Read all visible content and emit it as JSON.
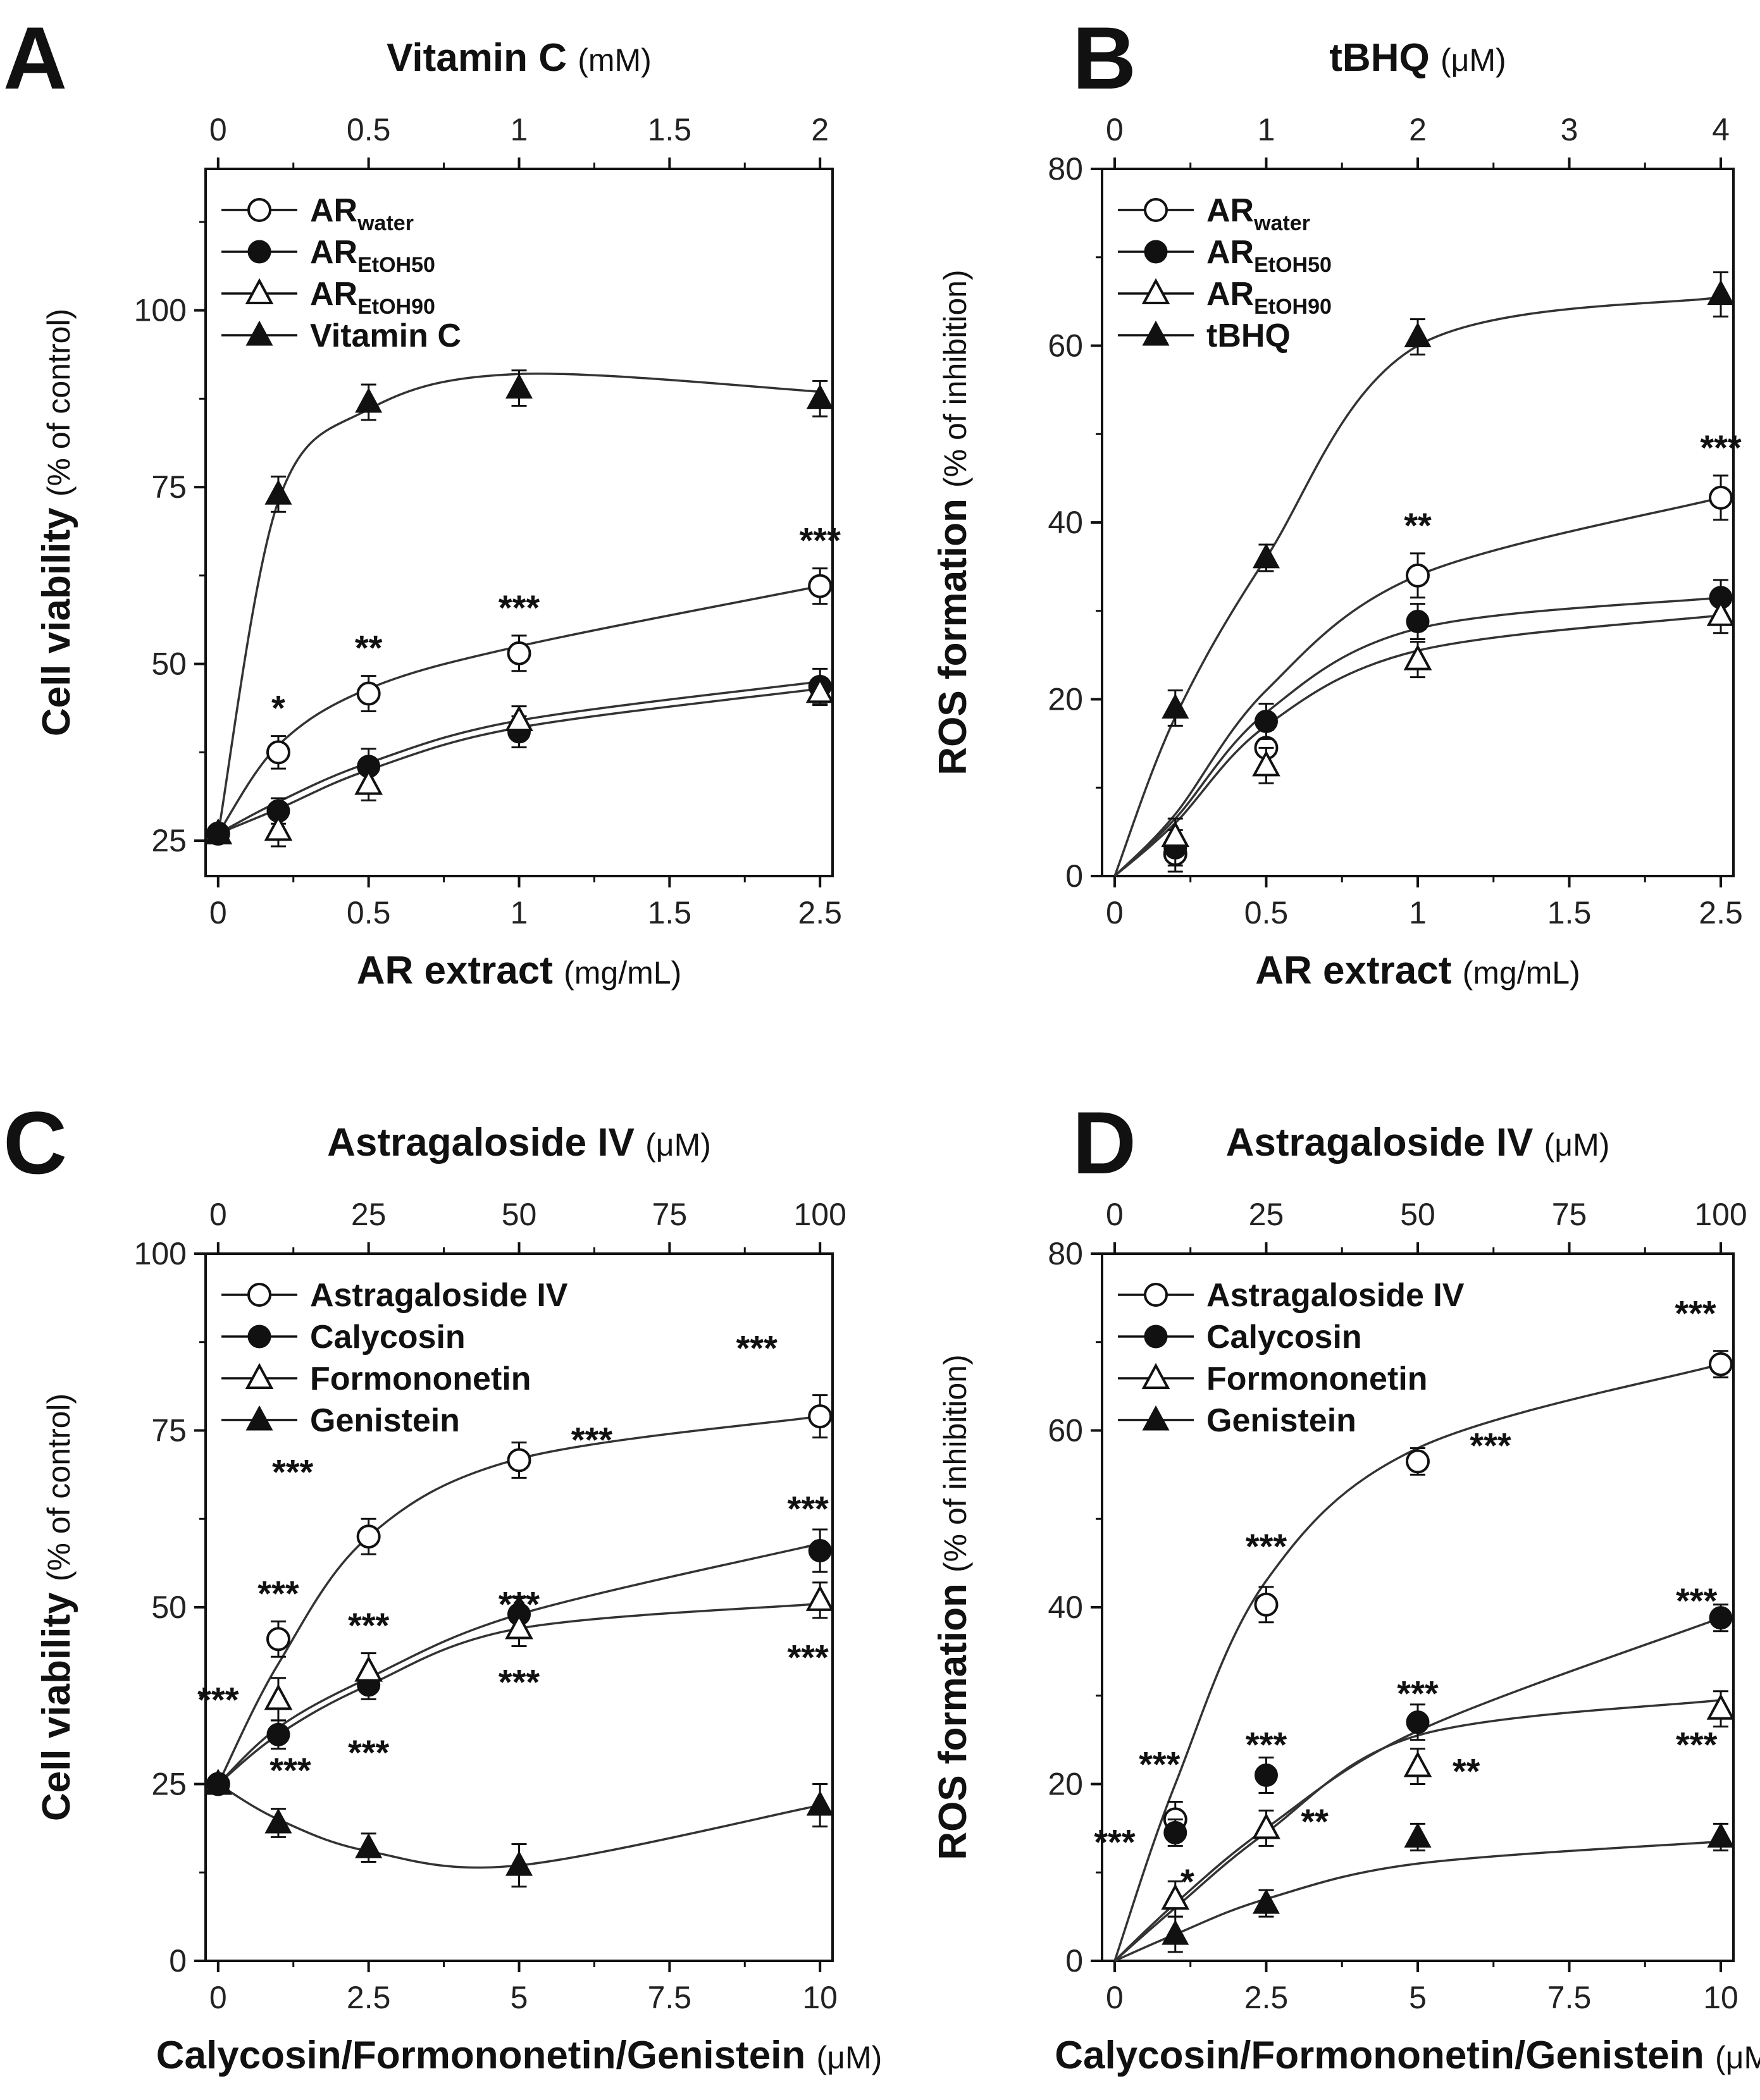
{
  "chart_data": [
    {
      "panel": "A",
      "type": "line",
      "title": "",
      "top_axis": {
        "label": "Vitamin C",
        "unit": "(mM)",
        "ticks": [
          "0",
          "0.5",
          "1",
          "1.5",
          "2"
        ]
      },
      "xlabel": "AR extract",
      "xunit": "(mg/mL)",
      "ylabel": "Cell viability",
      "yunit": "(% of control)",
      "x_ticks": [
        "0",
        "0.5",
        "1",
        "1.5",
        "2.5"
      ],
      "y_ticks": [
        "25",
        "50",
        "75",
        "100"
      ],
      "ylim": [
        20,
        120
      ],
      "categories": [
        "0",
        "0.2",
        "0.5",
        "1",
        "2.5"
      ],
      "legend": [
        "AR_water",
        "AR_EtOH50",
        "AR_EtOH90",
        "Vitamin C"
      ],
      "series": [
        {
          "name": "AR",
          "sub": "water",
          "marker": "open-circle",
          "values": [
            26,
            37.5,
            45.8,
            51.5,
            61
          ],
          "err": [
            1,
            2.3,
            2.5,
            2.5,
            2.5
          ],
          "fit": [
            26,
            38.5,
            46.5,
            52.5,
            61
          ],
          "stars": [
            {
              "x": 1,
              "text": "*",
              "dy": -25
            },
            {
              "x": 2,
              "text": "**",
              "dy": -25
            },
            {
              "x": 3,
              "text": "***",
              "dy": -25
            },
            {
              "x": 4,
              "text": "***",
              "dy": -25
            }
          ]
        },
        {
          "name": "AR",
          "sub": "EtOH50",
          "marker": "filled-circle",
          "values": [
            26,
            29.2,
            35.5,
            40.4,
            46.8
          ],
          "err": [
            1,
            1.8,
            2.5,
            2.2,
            2.5
          ],
          "fit": [
            26,
            30.5,
            36,
            42,
            47.5
          ],
          "stars": []
        },
        {
          "name": "AR",
          "sub": "EtOH90",
          "marker": "open-triangle",
          "values": [
            26,
            26.5,
            33,
            42,
            46
          ],
          "err": [
            1,
            2.3,
            2.3,
            2,
            1.8
          ],
          "fit": [
            26,
            29.5,
            35,
            41,
            46.5
          ],
          "stars": []
        },
        {
          "name": "Vitamin C",
          "sub": "",
          "marker": "filled-triangle",
          "values": [
            26,
            74,
            87,
            89,
            87.5
          ],
          "err": [
            1,
            2.5,
            2.5,
            2.5,
            2.5
          ],
          "fit": [
            26,
            73,
            86,
            91,
            88.5
          ],
          "stars": []
        }
      ]
    },
    {
      "panel": "B",
      "type": "line",
      "title": "",
      "top_axis": {
        "label": "tBHQ",
        "unit": "(μM)",
        "ticks": [
          "0",
          "1",
          "2",
          "3",
          "4"
        ]
      },
      "xlabel": "AR extract",
      "xunit": "(mg/mL)",
      "ylabel": "ROS formation",
      "yunit": "(% of inhibition)",
      "x_ticks": [
        "0",
        "0.5",
        "1",
        "1.5",
        "2.5"
      ],
      "y_ticks": [
        "0",
        "20",
        "40",
        "60",
        "80"
      ],
      "ylim": [
        0,
        80
      ],
      "categories": [
        "0",
        "0.2",
        "0.5",
        "1",
        "2.5"
      ],
      "legend": [
        "AR_water",
        "AR_EtOH50",
        "AR_EtOH90",
        "tBHQ"
      ],
      "series": [
        {
          "name": "AR",
          "sub": "water",
          "marker": "open-circle",
          "values": [
            null,
            2.5,
            14.5,
            34,
            42.8
          ],
          "err": [
            0,
            2,
            2,
            2.5,
            2.5
          ],
          "fit": [
            0,
            7,
            21,
            34,
            42.8
          ],
          "stars": [
            {
              "x": 3,
              "text": "**",
              "dy": -25
            },
            {
              "x": 4,
              "text": "***",
              "dy": -25
            }
          ]
        },
        {
          "name": "AR",
          "sub": "EtOH50",
          "marker": "filled-circle",
          "values": [
            null,
            3.2,
            17.5,
            28.8,
            31.5
          ],
          "err": [
            0,
            2,
            2,
            2,
            2
          ],
          "fit": [
            0,
            6.5,
            18.5,
            28,
            31.5
          ],
          "stars": []
        },
        {
          "name": "AR",
          "sub": "EtOH90",
          "marker": "open-triangle",
          "values": [
            null,
            4.5,
            12.5,
            24.5,
            29.5
          ],
          "err": [
            0,
            2,
            2,
            2,
            2
          ],
          "fit": [
            0,
            6,
            17,
            25.5,
            29.5
          ],
          "stars": []
        },
        {
          "name": "tBHQ",
          "sub": "",
          "marker": "filled-triangle",
          "values": [
            null,
            19,
            36,
            61,
            65.8
          ],
          "err": [
            0,
            2,
            1.5,
            2,
            2.5
          ],
          "fit": [
            0,
            18,
            36,
            60,
            65.5
          ],
          "stars": []
        }
      ]
    },
    {
      "panel": "C",
      "type": "line",
      "title": "",
      "top_axis": {
        "label": "Astragaloside IV",
        "unit": "(μM)",
        "ticks": [
          "0",
          "25",
          "50",
          "75",
          "100"
        ]
      },
      "xlabel": "Calycosin/Formononetin/Genistein",
      "xunit": "(μM)",
      "ylabel": "Cell viability",
      "yunit": "(% of control)",
      "x_ticks": [
        "0",
        "2.5",
        "5",
        "7.5",
        "10"
      ],
      "y_ticks": [
        "0",
        "25",
        "50",
        "75",
        "100"
      ],
      "ylim": [
        0,
        100
      ],
      "categories": [
        "0",
        "1",
        "2.5",
        "5",
        "10"
      ],
      "legend": [
        "Astragaloside IV",
        "Calycosin",
        "Formononetin",
        "Genistein"
      ],
      "series": [
        {
          "name": "Astragaloside IV",
          "sub": "",
          "marker": "open-circle",
          "values": [
            25,
            45.5,
            60,
            70.8,
            77
          ],
          "err": [
            1,
            2.5,
            2.5,
            2.5,
            3
          ],
          "fit": [
            25,
            42,
            60,
            71,
            77
          ],
          "stars": [
            {
              "x": 1,
              "text": "***",
              "dy": -25
            },
            {
              "x": 2,
              "text": "***",
              "dx": -120,
              "dy": -55
            },
            {
              "x": 3,
              "text": "***",
              "dx": 115,
              "dy": 15
            },
            {
              "x": 4,
              "text": "***",
              "dx": -100,
              "dy": -55
            }
          ]
        },
        {
          "name": "Calycosin",
          "sub": "",
          "marker": "filled-circle",
          "values": [
            25,
            32,
            39,
            49,
            58
          ],
          "err": [
            1,
            2,
            2,
            2.5,
            3
          ],
          "fit": [
            25,
            33,
            40,
            49,
            59
          ],
          "stars": []
        },
        {
          "name": "Formononetin",
          "sub": "",
          "marker": "open-triangle",
          "values": [
            25,
            37,
            41,
            47,
            51
          ],
          "err": [
            1,
            3,
            2.5,
            2.5,
            2.5
          ],
          "fit": [
            25,
            32,
            39,
            47,
            50.5
          ],
          "stars": []
        },
        {
          "name": "Genistein",
          "sub": "",
          "marker": "filled-triangle",
          "values": [
            25,
            19.5,
            16,
            13.5,
            22
          ],
          "err": [
            1,
            2,
            2,
            3,
            3
          ],
          "fit": [
            25,
            20,
            15.5,
            13.5,
            22
          ],
          "stars": []
        }
      ],
      "star_labels": [
        {
          "text": "***",
          "at": [
            2.5,
            47.5
          ]
        },
        {
          "text": "***",
          "at": [
            0,
            37
          ]
        },
        {
          "text": "***",
          "at": [
            1.2,
            27
          ]
        },
        {
          "text": "***",
          "at": [
            2.5,
            29.5
          ]
        },
        {
          "text": "***",
          "at": [
            5,
            50.5
          ]
        },
        {
          "text": "***",
          "at": [
            5,
            39.5
          ]
        },
        {
          "text": "***",
          "at": [
            9.8,
            64
          ]
        },
        {
          "text": "***",
          "at": [
            9.8,
            43
          ]
        }
      ]
    },
    {
      "panel": "D",
      "type": "line",
      "title": "",
      "top_axis": {
        "label": "Astragaloside IV",
        "unit": "(μM)",
        "ticks": [
          "0",
          "25",
          "50",
          "75",
          "100"
        ]
      },
      "xlabel": "Calycosin/Formononetin/Genistein",
      "xunit": "(μM)",
      "ylabel": "ROS formation",
      "yunit": "(% of inhibition)",
      "x_ticks": [
        "0",
        "2.5",
        "5",
        "7.5",
        "10"
      ],
      "y_ticks": [
        "0",
        "20",
        "40",
        "60",
        "80"
      ],
      "ylim": [
        0,
        80
      ],
      "categories": [
        "0",
        "1",
        "2.5",
        "5",
        "10"
      ],
      "legend": [
        "Astragaloside IV",
        "Calycosin",
        "Formononetin",
        "Genistein"
      ],
      "series": [
        {
          "name": "Astragaloside IV",
          "sub": "",
          "marker": "open-circle",
          "values": [
            null,
            16,
            40.3,
            56.5,
            67.5
          ],
          "err": [
            0,
            2,
            2,
            1.5,
            1.5
          ],
          "fit": [
            0,
            20,
            43,
            58,
            67.5
          ],
          "stars": [
            {
              "x": 1,
              "text": "***",
              "dx": -25,
              "dy": -40
            },
            {
              "x": 2,
              "text": "***",
              "dy": -45
            },
            {
              "x": 3,
              "text": "***",
              "dx": 115,
              "dy": 15
            },
            {
              "x": 4,
              "text": "***",
              "dx": -40,
              "dy": -40
            }
          ]
        },
        {
          "name": "Calycosin",
          "sub": "",
          "marker": "filled-circle",
          "values": [
            null,
            14.5,
            21,
            27,
            38.8
          ],
          "err": [
            0,
            1.5,
            2,
            2,
            1.5
          ],
          "fit": [
            0,
            6.5,
            15,
            26,
            38.8
          ],
          "stars": []
        },
        {
          "name": "Formononetin",
          "sub": "",
          "marker": "open-triangle",
          "values": [
            null,
            7,
            15,
            22,
            28.5
          ],
          "err": [
            0,
            2,
            2,
            2,
            2
          ],
          "fit": [
            0,
            6,
            14.5,
            25.5,
            29.5
          ],
          "stars": []
        },
        {
          "name": "Genistein",
          "sub": "",
          "marker": "filled-triangle",
          "values": [
            null,
            3,
            6.5,
            14,
            14
          ],
          "err": [
            0,
            2,
            1.5,
            1.5,
            1.5
          ],
          "fit": [
            0,
            3,
            7,
            11,
            13.5
          ],
          "stars": []
        }
      ],
      "star_labels": [
        {
          "text": "***",
          "at": [
            0,
            13.5
          ]
        },
        {
          "text": "*",
          "at": [
            1.2,
            9
          ]
        },
        {
          "text": "***",
          "at": [
            2.5,
            24.5
          ]
        },
        {
          "text": "**",
          "at": [
            3.3,
            15.8
          ]
        },
        {
          "text": "***",
          "at": [
            5,
            30.3
          ]
        },
        {
          "text": "**",
          "at": [
            5.8,
            21.5
          ]
        },
        {
          "text": "***",
          "at": [
            9.6,
            24.5
          ]
        },
        {
          "text": "***",
          "at": [
            9.6,
            40.8
          ]
        }
      ]
    }
  ]
}
